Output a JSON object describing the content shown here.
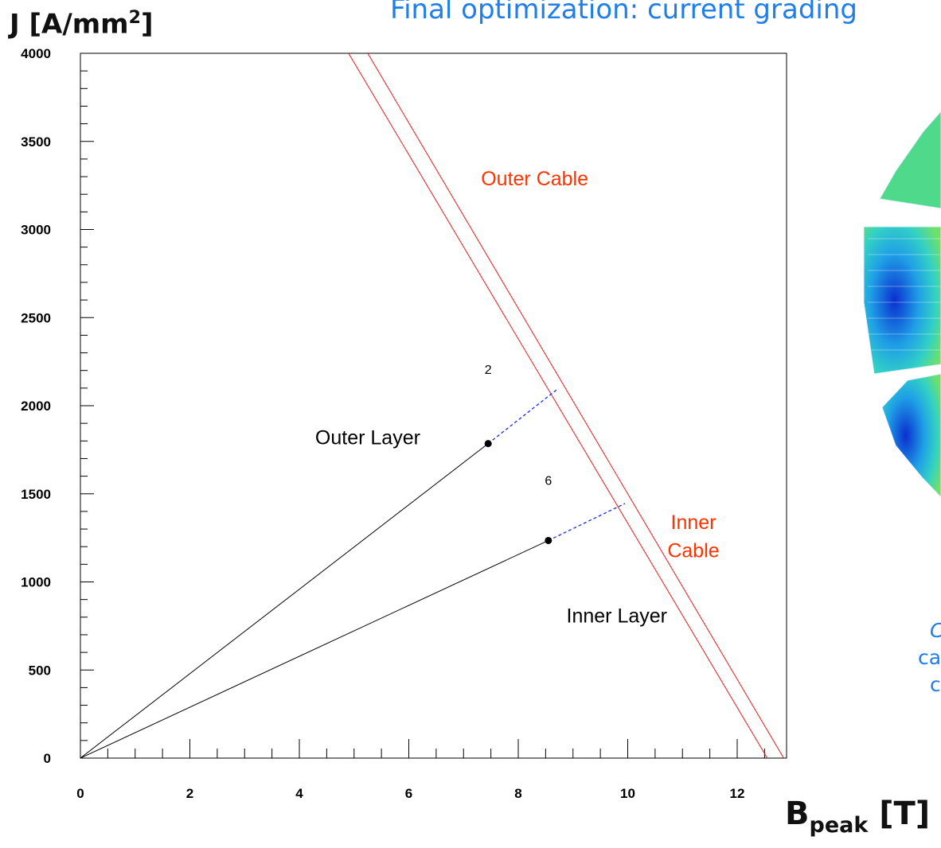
{
  "slide": {
    "title": "Final optimization: current  grading",
    "y_axis_title_main": "J [A/mm",
    "y_axis_title_sup": "2",
    "y_axis_title_end": "]",
    "x_axis_title_main": "B",
    "x_axis_title_sub": "peak",
    "x_axis_title_end": " [T]",
    "side_text": [
      "C",
      "ca",
      "c"
    ]
  },
  "chart_data": {
    "type": "line",
    "title": "",
    "xlabel": "Bpeak [T]",
    "ylabel": "J [A/mm2]",
    "xlim": [
      0,
      13.1
    ],
    "ylim": [
      0,
      4000
    ],
    "x_ticks": [
      0,
      2,
      4,
      6,
      8,
      10,
      12
    ],
    "x_tick_labels": [
      "0",
      "2",
      "4",
      "6",
      "8",
      "10",
      "12"
    ],
    "y_ticks": [
      0,
      500,
      1000,
      1500,
      2000,
      2500,
      3000,
      3500,
      4000
    ],
    "y_tick_labels": [
      "0",
      "500",
      "1000",
      "1500",
      "2000",
      "2500",
      "3000",
      "3500",
      "4000"
    ],
    "grid": false,
    "colors": {
      "critical": "#e31e1e",
      "loadline": "#000000",
      "margin": "#1a2ce8",
      "label_red": "#ff3300"
    },
    "series": [
      {
        "name": "Outer Cable",
        "kind": "critical",
        "points": [
          [
            4.9,
            4000
          ],
          [
            12.55,
            0
          ]
        ]
      },
      {
        "name": "Inner Cable",
        "kind": "critical",
        "points": [
          [
            5.25,
            4000
          ],
          [
            12.85,
            0
          ]
        ]
      },
      {
        "name": "Outer Layer",
        "kind": "loadline",
        "points": [
          [
            0,
            0
          ],
          [
            7.45,
            1785
          ]
        ]
      },
      {
        "name": "Inner Layer",
        "kind": "loadline",
        "points": [
          [
            0,
            0
          ],
          [
            8.55,
            1235
          ]
        ]
      },
      {
        "kind": "margin",
        "points": [
          [
            7.45,
            1785
          ],
          [
            8.7,
            2090
          ]
        ]
      },
      {
        "kind": "margin",
        "points": [
          [
            8.55,
            1235
          ],
          [
            9.95,
            1445
          ]
        ]
      }
    ],
    "markers": [
      {
        "x": 7.45,
        "y": 1785
      },
      {
        "x": 8.55,
        "y": 1235
      }
    ],
    "annotations": [
      {
        "text": "Outer Cable",
        "x": 8.3,
        "y": 3250,
        "color": "label_red"
      },
      {
        "text": "Inner",
        "x": 11.2,
        "y": 1300,
        "color": "label_red"
      },
      {
        "text": "Cable",
        "x": 11.2,
        "y": 1140,
        "color": "label_red"
      },
      {
        "text": "Outer Layer",
        "x": 5.25,
        "y": 1780,
        "color": "loadline"
      },
      {
        "text": "Inner Layer",
        "x": 9.8,
        "y": 770,
        "color": "loadline"
      },
      {
        "text": "2",
        "x": 7.45,
        "y": 2180,
        "color": "loadline"
      },
      {
        "text": "6",
        "x": 8.55,
        "y": 1550,
        "color": "loadline"
      }
    ]
  }
}
